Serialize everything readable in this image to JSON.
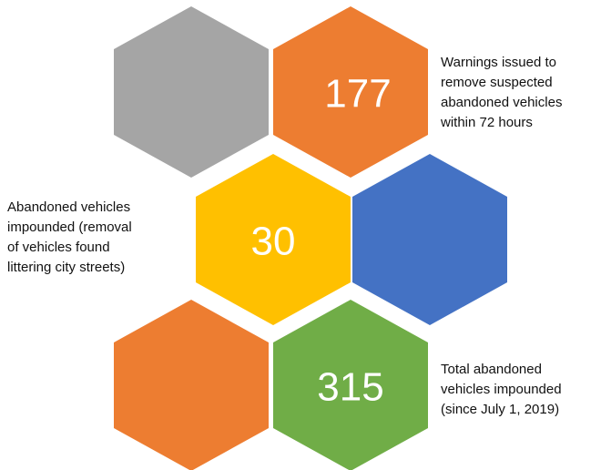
{
  "hexagons": [
    {
      "color": "#a5a5a5"
    },
    {
      "color": "#ed7d31",
      "value": 177,
      "label": [
        "Warnings issued to",
        "remove suspected",
        "abandoned vehicles",
        "within 72 hours"
      ]
    },
    {
      "color": "#ffc000",
      "value": 30,
      "label": [
        "Abandoned vehicles",
        "impounded (removal",
        "of vehicles found",
        "littering city streets)"
      ]
    },
    {
      "color": "#4472c4"
    },
    {
      "color": "#ed7d31"
    },
    {
      "color": "#70ad47",
      "value": 315,
      "label": [
        "Total abandoned",
        "vehicles impounded",
        "(since July 1, 2019)"
      ]
    }
  ]
}
